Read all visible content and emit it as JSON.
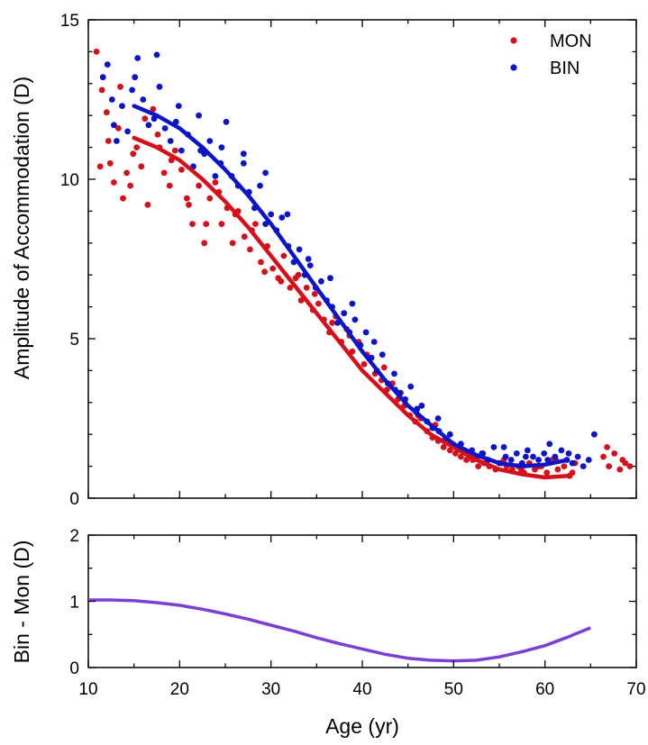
{
  "chart_data": [
    {
      "type": "scatter",
      "title": "",
      "xlabel": "Age (yr)",
      "ylabel": "Amplitude of Accommodation (D)",
      "xlim": [
        10,
        70
      ],
      "ylim": [
        0,
        15
      ],
      "xticks": [
        "10",
        "20",
        "30",
        "40",
        "50",
        "60",
        "70"
      ],
      "yticks": [
        "0",
        "5",
        "10",
        "15"
      ],
      "grid": false,
      "legend_position": "top-right",
      "colors": {
        "MON": "#d6101a",
        "BIN": "#0c14c8"
      },
      "series": [
        {
          "name": "MON",
          "color": "#d6101a",
          "x": [
            10.9,
            11.5,
            12.0,
            12.4,
            12.8,
            13.3,
            13.8,
            14.2,
            14.6,
            15.3,
            15.8,
            16.5,
            17.1,
            17.6,
            18.3,
            18.9,
            19.5,
            20.2,
            20.8,
            21.4,
            22.1,
            22.7,
            23.3,
            23.9,
            24.6,
            25.2,
            25.8,
            26.4,
            27.1,
            27.7,
            28.3,
            28.9,
            29.6,
            30.2,
            30.8,
            31.4,
            32.1,
            32.7,
            33.3,
            33.9,
            34.6,
            35.2,
            35.8,
            36.4,
            37.1,
            37.7,
            38.3,
            38.9,
            39.6,
            40.2,
            40.8,
            41.4,
            42.1,
            42.7,
            43.3,
            43.9,
            44.6,
            45.2,
            45.8,
            46.4,
            47.1,
            47.7,
            48.3,
            48.9,
            49.6,
            50.2,
            50.8,
            51.4,
            52.1,
            52.7,
            53.3,
            53.9,
            54.6,
            55.2,
            55.8,
            56.4,
            57.1,
            57.7,
            58.3,
            58.9,
            59.6,
            60.2,
            60.8,
            61.4,
            62.1,
            62.7,
            63.3,
            66.4,
            67.0,
            67.6,
            68.2,
            68.8,
            69.3,
            11.3,
            12.2,
            13.5,
            14.9,
            16.2,
            17.8,
            19.1,
            21.0,
            22.9,
            24.3,
            26.1,
            27.9,
            29.3,
            31.1,
            33.0,
            34.8,
            36.7,
            38.6,
            40.5,
            42.4,
            44.2,
            46.1,
            48.0,
            49.9,
            51.8,
            53.6,
            55.5,
            57.4,
            59.3,
            61.2,
            63.0,
            66.8,
            68.5
          ],
          "y": [
            14.0,
            12.8,
            12.1,
            10.5,
            9.9,
            11.6,
            9.4,
            10.2,
            9.8,
            11.0,
            10.4,
            9.2,
            12.2,
            11.4,
            10.2,
            9.8,
            10.9,
            10.3,
            9.4,
            8.6,
            9.8,
            8.0,
            9.4,
            9.9,
            8.6,
            9.1,
            8.0,
            9.0,
            8.2,
            7.8,
            8.6,
            7.4,
            7.9,
            7.2,
            6.9,
            7.6,
            6.6,
            6.9,
            6.2,
            6.6,
            5.9,
            6.1,
            5.6,
            5.2,
            5.7,
            4.9,
            5.3,
            4.6,
            4.9,
            4.2,
            4.4,
            3.9,
            3.7,
            3.4,
            3.6,
            3.1,
            2.9,
            2.6,
            2.4,
            2.5,
            2.1,
            1.9,
            1.8,
            1.6,
            1.5,
            1.4,
            1.3,
            1.2,
            1.2,
            1.0,
            1.1,
            1.0,
            0.9,
            1.1,
            1.0,
            0.9,
            1.0,
            0.8,
            1.1,
            0.9,
            1.0,
            0.8,
            1.2,
            0.9,
            1.0,
            0.7,
            1.1,
            1.3,
            1.0,
            1.4,
            0.9,
            1.1,
            1.0,
            10.4,
            11.2,
            12.9,
            10.8,
            11.9,
            11.0,
            10.6,
            9.2,
            8.6,
            9.6,
            8.9,
            8.4,
            7.1,
            6.8,
            7.0,
            6.4,
            5.5,
            5.1,
            4.5,
            4.1,
            3.3,
            2.6,
            2.3,
            1.7,
            1.3,
            1.1,
            1.2,
            0.9,
            1.0,
            1.2,
            0.8,
            1.6,
            1.2
          ],
          "fit": {
            "x": [
              15,
              17.5,
              20,
              22.5,
              25,
              27.5,
              30,
              32.5,
              35,
              37.5,
              40,
              42.5,
              45,
              47.5,
              50,
              52.5,
              55,
              57.5,
              60,
              62.5
            ],
            "y": [
              11.3,
              11.0,
              10.6,
              10.0,
              9.3,
              8.5,
              7.6,
              6.7,
              5.8,
              4.9,
              4.0,
              3.3,
              2.6,
              2.0,
              1.6,
              1.2,
              0.9,
              0.75,
              0.65,
              0.7
            ]
          }
        },
        {
          "name": "BIN",
          "color": "#0c14c8",
          "x": [
            11.6,
            12.1,
            12.6,
            13.1,
            13.7,
            14.3,
            14.8,
            15.4,
            16.0,
            16.6,
            17.2,
            17.8,
            18.4,
            19.0,
            19.6,
            20.2,
            20.9,
            21.5,
            22.1,
            22.7,
            23.3,
            23.9,
            24.5,
            25.1,
            25.7,
            26.4,
            27.0,
            27.6,
            28.2,
            28.8,
            29.4,
            30.0,
            30.6,
            31.2,
            31.9,
            32.5,
            33.1,
            33.7,
            34.3,
            34.9,
            35.5,
            36.1,
            36.7,
            37.3,
            38.0,
            38.6,
            39.2,
            39.8,
            40.4,
            41.0,
            41.6,
            42.2,
            42.8,
            43.5,
            44.1,
            44.7,
            45.3,
            45.9,
            46.5,
            47.1,
            47.7,
            48.3,
            48.9,
            49.6,
            50.2,
            50.8,
            51.4,
            52.0,
            52.6,
            53.2,
            53.8,
            54.4,
            55.0,
            55.7,
            56.3,
            56.9,
            57.5,
            58.1,
            58.7,
            59.3,
            59.9,
            60.5,
            61.1,
            61.8,
            62.4,
            63.0,
            63.6,
            64.2,
            64.8,
            65.4,
            12.8,
            15.1,
            17.5,
            19.9,
            22.3,
            24.6,
            27.0,
            29.4,
            31.8,
            34.1,
            36.5,
            38.9,
            41.3,
            43.6,
            46.0,
            48.4,
            50.8,
            53.1,
            55.5,
            57.9,
            60.3,
            62.6
          ],
          "y": [
            13.2,
            13.6,
            12.5,
            11.2,
            12.3,
            11.5,
            12.8,
            13.8,
            12.5,
            11.7,
            11.9,
            12.9,
            11.6,
            11.2,
            11.8,
            10.9,
            11.4,
            10.4,
            12.0,
            10.8,
            11.2,
            10.1,
            10.5,
            11.8,
            10.1,
            9.8,
            10.5,
            9.6,
            9.1,
            9.8,
            8.6,
            8.9,
            8.4,
            8.8,
            7.9,
            7.4,
            7.8,
            7.0,
            7.3,
            6.6,
            6.8,
            6.2,
            6.0,
            5.5,
            5.8,
            5.2,
            5.6,
            4.8,
            5.2,
            4.4,
            4.0,
            4.5,
            3.6,
            3.9,
            3.3,
            3.1,
            3.5,
            2.7,
            2.9,
            2.4,
            2.2,
            2.5,
            1.8,
            2.0,
            1.6,
            1.7,
            1.4,
            1.5,
            1.3,
            1.4,
            1.2,
            1.6,
            1.1,
            1.3,
            1.2,
            1.4,
            1.1,
            1.5,
            1.3,
            1.2,
            1.4,
            1.7,
            1.3,
            1.5,
            1.2,
            1.1,
            1.3,
            1.0,
            1.2,
            2.0,
            11.7,
            13.2,
            13.9,
            12.3,
            10.9,
            11.0,
            10.8,
            10.2,
            8.9,
            7.5,
            6.9,
            6.1,
            4.9,
            3.4,
            2.8,
            2.1,
            1.5,
            1.4,
            1.6,
            1.3,
            1.2,
            1.4
          ],
          "fit": {
            "x": [
              15,
              17.5,
              20,
              22.5,
              25,
              27.5,
              30,
              32.5,
              35,
              37.5,
              40,
              42.5,
              45,
              47.5,
              50,
              52.5,
              55,
              57.5,
              60,
              62.5
            ],
            "y": [
              12.3,
              12.0,
              11.6,
              11.0,
              10.3,
              9.5,
              8.6,
              7.6,
              6.6,
              5.6,
              4.6,
              3.7,
              2.9,
              2.3,
              1.7,
              1.35,
              1.1,
              1.0,
              1.05,
              1.2
            ]
          }
        }
      ]
    },
    {
      "type": "line",
      "title": "",
      "xlabel": "Age (yr)",
      "ylabel": "Bin - Mon (D)",
      "xlim": [
        10,
        70
      ],
      "ylim": [
        0,
        2
      ],
      "xticks": [
        "10",
        "20",
        "30",
        "40",
        "50",
        "60",
        "70"
      ],
      "yticks": [
        "0",
        "1",
        "2"
      ],
      "grid": false,
      "series": [
        {
          "color": "#7b3fd6",
          "x": [
            10,
            12.5,
            15,
            17.5,
            20,
            22.5,
            25,
            27.5,
            30,
            32.5,
            35,
            37.5,
            40,
            42.5,
            45,
            47.5,
            50,
            52.5,
            55,
            57.5,
            60,
            62.5,
            65
          ],
          "y": [
            1.02,
            1.02,
            1.01,
            0.98,
            0.94,
            0.88,
            0.81,
            0.73,
            0.64,
            0.55,
            0.45,
            0.36,
            0.28,
            0.2,
            0.14,
            0.11,
            0.1,
            0.11,
            0.16,
            0.24,
            0.33,
            0.46,
            0.6
          ]
        }
      ]
    }
  ]
}
